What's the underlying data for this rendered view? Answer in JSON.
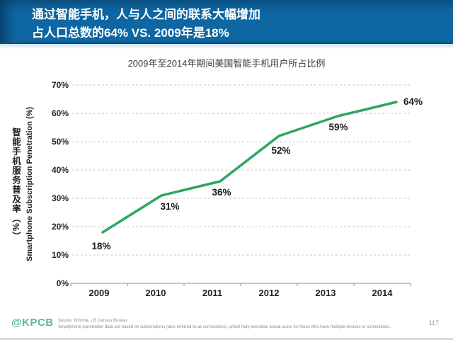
{
  "header": {
    "line1": "通过智能手机，人与人之间的联系大幅增加",
    "line2": "占人口总数的64% VS. 2009年是18%",
    "bg_color": "#0e67a2",
    "text_color": "#ffffff"
  },
  "chart_data": {
    "type": "line",
    "title": "2009年至2014年期间美国智能手机用户所占比例",
    "categories": [
      "2009",
      "2010",
      "2011",
      "2012",
      "2013",
      "2014"
    ],
    "values": [
      18,
      31,
      36,
      52,
      59,
      64
    ],
    "data_labels": [
      "18%",
      "31%",
      "36%",
      "52%",
      "59%",
      "64%"
    ],
    "y_ticks": [
      "0%",
      "10%",
      "20%",
      "30%",
      "40%",
      "50%",
      "60%",
      "70%"
    ],
    "ylim": [
      0,
      70
    ],
    "ylabel_zh": "智能手机服务普及率（%）",
    "ylabel_en": "Smartphone Subscription Penetration (%)",
    "grid": "horizontal-dashed",
    "legend": "none",
    "line_color": "#2da661"
  },
  "footer": {
    "logo": "@KPCB",
    "logo_color": "#56bb93",
    "source_line1": "Source: Informa, US Census Bureau.",
    "source_line2": "Smartphone penetration data are based on subscriptions (also referred to as connections), which may overstate actual users for those who have multiple devices or connections.",
    "page_number": "117"
  }
}
